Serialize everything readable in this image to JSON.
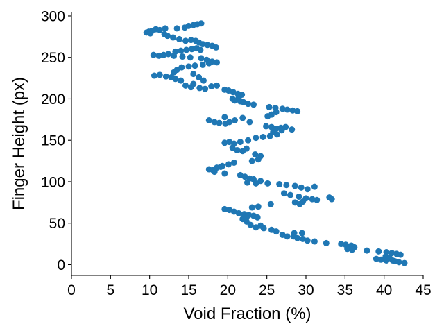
{
  "chart_data": {
    "type": "scatter",
    "title": "",
    "xlabel": "Void Fraction (%)",
    "ylabel": "Finger Height (px)",
    "xlim": [
      0,
      45
    ],
    "ylim": [
      -13,
      305
    ],
    "xticks": [
      0,
      5,
      10,
      15,
      20,
      25,
      30,
      35,
      40,
      45
    ],
    "yticks": [
      0,
      50,
      100,
      150,
      200,
      250,
      300
    ],
    "grid": false,
    "legend": "none",
    "marker_color": "#1f77b4",
    "series": [
      {
        "points": [
          [
            9.6,
            280
          ],
          [
            9.9,
            281
          ],
          [
            10.1,
            279
          ],
          [
            10.3,
            282
          ],
          [
            10.8,
            284
          ],
          [
            11.3,
            283
          ],
          [
            12.0,
            285
          ],
          [
            13.5,
            285
          ],
          [
            14.5,
            286
          ],
          [
            15.0,
            288
          ],
          [
            15.6,
            289
          ],
          [
            16.1,
            290
          ],
          [
            16.6,
            291
          ],
          [
            11.9,
            278
          ],
          [
            12.3,
            276
          ],
          [
            13.0,
            274
          ],
          [
            13.8,
            272
          ],
          [
            14.6,
            270
          ],
          [
            15.3,
            271
          ],
          [
            15.9,
            270
          ],
          [
            16.3,
            268
          ],
          [
            16.8,
            266
          ],
          [
            17.4,
            265
          ],
          [
            18.0,
            264
          ],
          [
            18.5,
            262
          ],
          [
            10.5,
            253
          ],
          [
            11.2,
            252
          ],
          [
            11.8,
            253
          ],
          [
            12.4,
            254
          ],
          [
            13.3,
            257
          ],
          [
            14.0,
            258
          ],
          [
            14.7,
            259
          ],
          [
            15.4,
            260
          ],
          [
            16.0,
            261
          ],
          [
            16.5,
            259
          ],
          [
            13.1,
            252
          ],
          [
            14.2,
            251
          ],
          [
            15.2,
            250
          ],
          [
            16.6,
            249
          ],
          [
            17.3,
            247
          ],
          [
            18.0,
            245
          ],
          [
            18.6,
            244
          ],
          [
            17.6,
            243
          ],
          [
            16.8,
            241
          ],
          [
            15.8,
            240
          ],
          [
            15.0,
            239
          ],
          [
            14.1,
            238
          ],
          [
            13.5,
            235
          ],
          [
            13.1,
            232
          ],
          [
            10.6,
            228
          ],
          [
            11.3,
            229
          ],
          [
            12.1,
            227
          ],
          [
            12.8,
            226
          ],
          [
            13.3,
            224
          ],
          [
            14.0,
            222
          ],
          [
            14.6,
            216
          ],
          [
            15.3,
            214
          ],
          [
            16.4,
            213
          ],
          [
            17.1,
            212
          ],
          [
            17.9,
            215
          ],
          [
            18.6,
            216
          ],
          [
            15.6,
            218
          ],
          [
            16.9,
            222
          ],
          [
            16.3,
            226
          ],
          [
            15.6,
            230
          ],
          [
            19.6,
            211
          ],
          [
            20.1,
            210
          ],
          [
            20.7,
            208
          ],
          [
            21.3,
            206
          ],
          [
            21.8,
            205
          ],
          [
            21.4,
            202
          ],
          [
            20.6,
            200
          ],
          [
            20.9,
            198
          ],
          [
            21.6,
            197
          ],
          [
            22.0,
            196
          ],
          [
            22.6,
            194
          ],
          [
            23.3,
            193
          ],
          [
            25.3,
            190
          ],
          [
            26.1,
            189
          ],
          [
            27.0,
            188
          ],
          [
            27.6,
            187
          ],
          [
            28.3,
            186
          ],
          [
            28.9,
            185
          ],
          [
            26.2,
            184
          ],
          [
            25.6,
            181
          ],
          [
            25.1,
            179
          ],
          [
            17.6,
            174
          ],
          [
            18.3,
            172
          ],
          [
            18.9,
            171
          ],
          [
            19.7,
            170
          ],
          [
            20.2,
            172
          ],
          [
            20.9,
            174
          ],
          [
            21.9,
            177
          ],
          [
            19.6,
            178
          ],
          [
            22.8,
            172
          ],
          [
            24.9,
            167
          ],
          [
            25.6,
            166
          ],
          [
            26.2,
            164
          ],
          [
            26.8,
            165
          ],
          [
            27.4,
            166
          ],
          [
            28.2,
            163
          ],
          [
            26.9,
            162
          ],
          [
            25.8,
            160
          ],
          [
            19.6,
            147
          ],
          [
            20.2,
            148
          ],
          [
            20.8,
            146
          ],
          [
            21.6,
            148
          ],
          [
            22.6,
            150
          ],
          [
            23.6,
            153
          ],
          [
            24.5,
            154
          ],
          [
            25.4,
            155
          ],
          [
            26.3,
            157
          ],
          [
            20.6,
            141
          ],
          [
            21.2,
            138
          ],
          [
            21.9,
            137
          ],
          [
            22.4,
            140
          ],
          [
            23.5,
            133
          ],
          [
            24.2,
            131
          ],
          [
            23.9,
            127
          ],
          [
            23.1,
            125
          ],
          [
            17.6,
            115
          ],
          [
            18.1,
            114
          ],
          [
            18.6,
            117
          ],
          [
            19.3,
            119
          ],
          [
            20.1,
            121
          ],
          [
            20.8,
            123
          ],
          [
            19.1,
            118
          ],
          [
            18.3,
            112
          ],
          [
            19.6,
            110
          ],
          [
            21.6,
            108
          ],
          [
            22.2,
            106
          ],
          [
            22.8,
            104
          ],
          [
            23.3,
            103
          ],
          [
            24.2,
            101
          ],
          [
            22.5,
            99
          ],
          [
            23.6,
            98
          ],
          [
            25.1,
            98
          ],
          [
            26.6,
            97
          ],
          [
            27.5,
            96
          ],
          [
            28.6,
            95
          ],
          [
            29.4,
            93
          ],
          [
            30.2,
            91
          ],
          [
            31.1,
            94
          ],
          [
            27.2,
            86
          ],
          [
            28.0,
            84
          ],
          [
            29.1,
            82
          ],
          [
            30.0,
            80
          ],
          [
            30.8,
            79
          ],
          [
            31.4,
            78
          ],
          [
            28.6,
            75
          ],
          [
            29.6,
            76
          ],
          [
            29.2,
            73
          ],
          [
            33.0,
            81
          ],
          [
            33.3,
            79
          ],
          [
            19.6,
            67
          ],
          [
            20.2,
            66
          ],
          [
            20.8,
            64
          ],
          [
            21.4,
            62
          ],
          [
            22.1,
            61
          ],
          [
            22.7,
            60
          ],
          [
            23.3,
            59
          ],
          [
            23.8,
            57
          ],
          [
            22.4,
            52
          ],
          [
            22.9,
            48
          ],
          [
            23.6,
            45
          ],
          [
            24.2,
            47
          ],
          [
            24.6,
            44
          ],
          [
            23.9,
            70
          ],
          [
            23.1,
            69
          ],
          [
            25.5,
            73
          ],
          [
            21.9,
            55
          ],
          [
            22.4,
            57
          ],
          [
            25.6,
            42
          ],
          [
            26.2,
            40
          ],
          [
            27.0,
            36
          ],
          [
            27.6,
            34
          ],
          [
            28.4,
            34
          ],
          [
            28.9,
            32
          ],
          [
            29.6,
            31
          ],
          [
            30.2,
            29
          ],
          [
            31.1,
            28
          ],
          [
            32.6,
            26
          ],
          [
            28.5,
            38
          ],
          [
            29.5,
            38
          ],
          [
            34.5,
            25
          ],
          [
            35.1,
            24
          ],
          [
            35.8,
            23
          ],
          [
            36.2,
            21
          ],
          [
            35.3,
            19
          ],
          [
            35.9,
            18
          ],
          [
            37.8,
            17
          ],
          [
            39.3,
            16
          ],
          [
            40.3,
            15
          ],
          [
            41.0,
            14
          ],
          [
            41.6,
            13
          ],
          [
            42.1,
            12
          ],
          [
            40.2,
            10
          ],
          [
            40.7,
            8
          ],
          [
            39.6,
            6
          ],
          [
            39.0,
            7
          ],
          [
            40.3,
            5
          ],
          [
            41.4,
            4
          ],
          [
            41.9,
            3
          ],
          [
            42.6,
            2
          ],
          [
            41.1,
            5
          ]
        ]
      }
    ]
  }
}
